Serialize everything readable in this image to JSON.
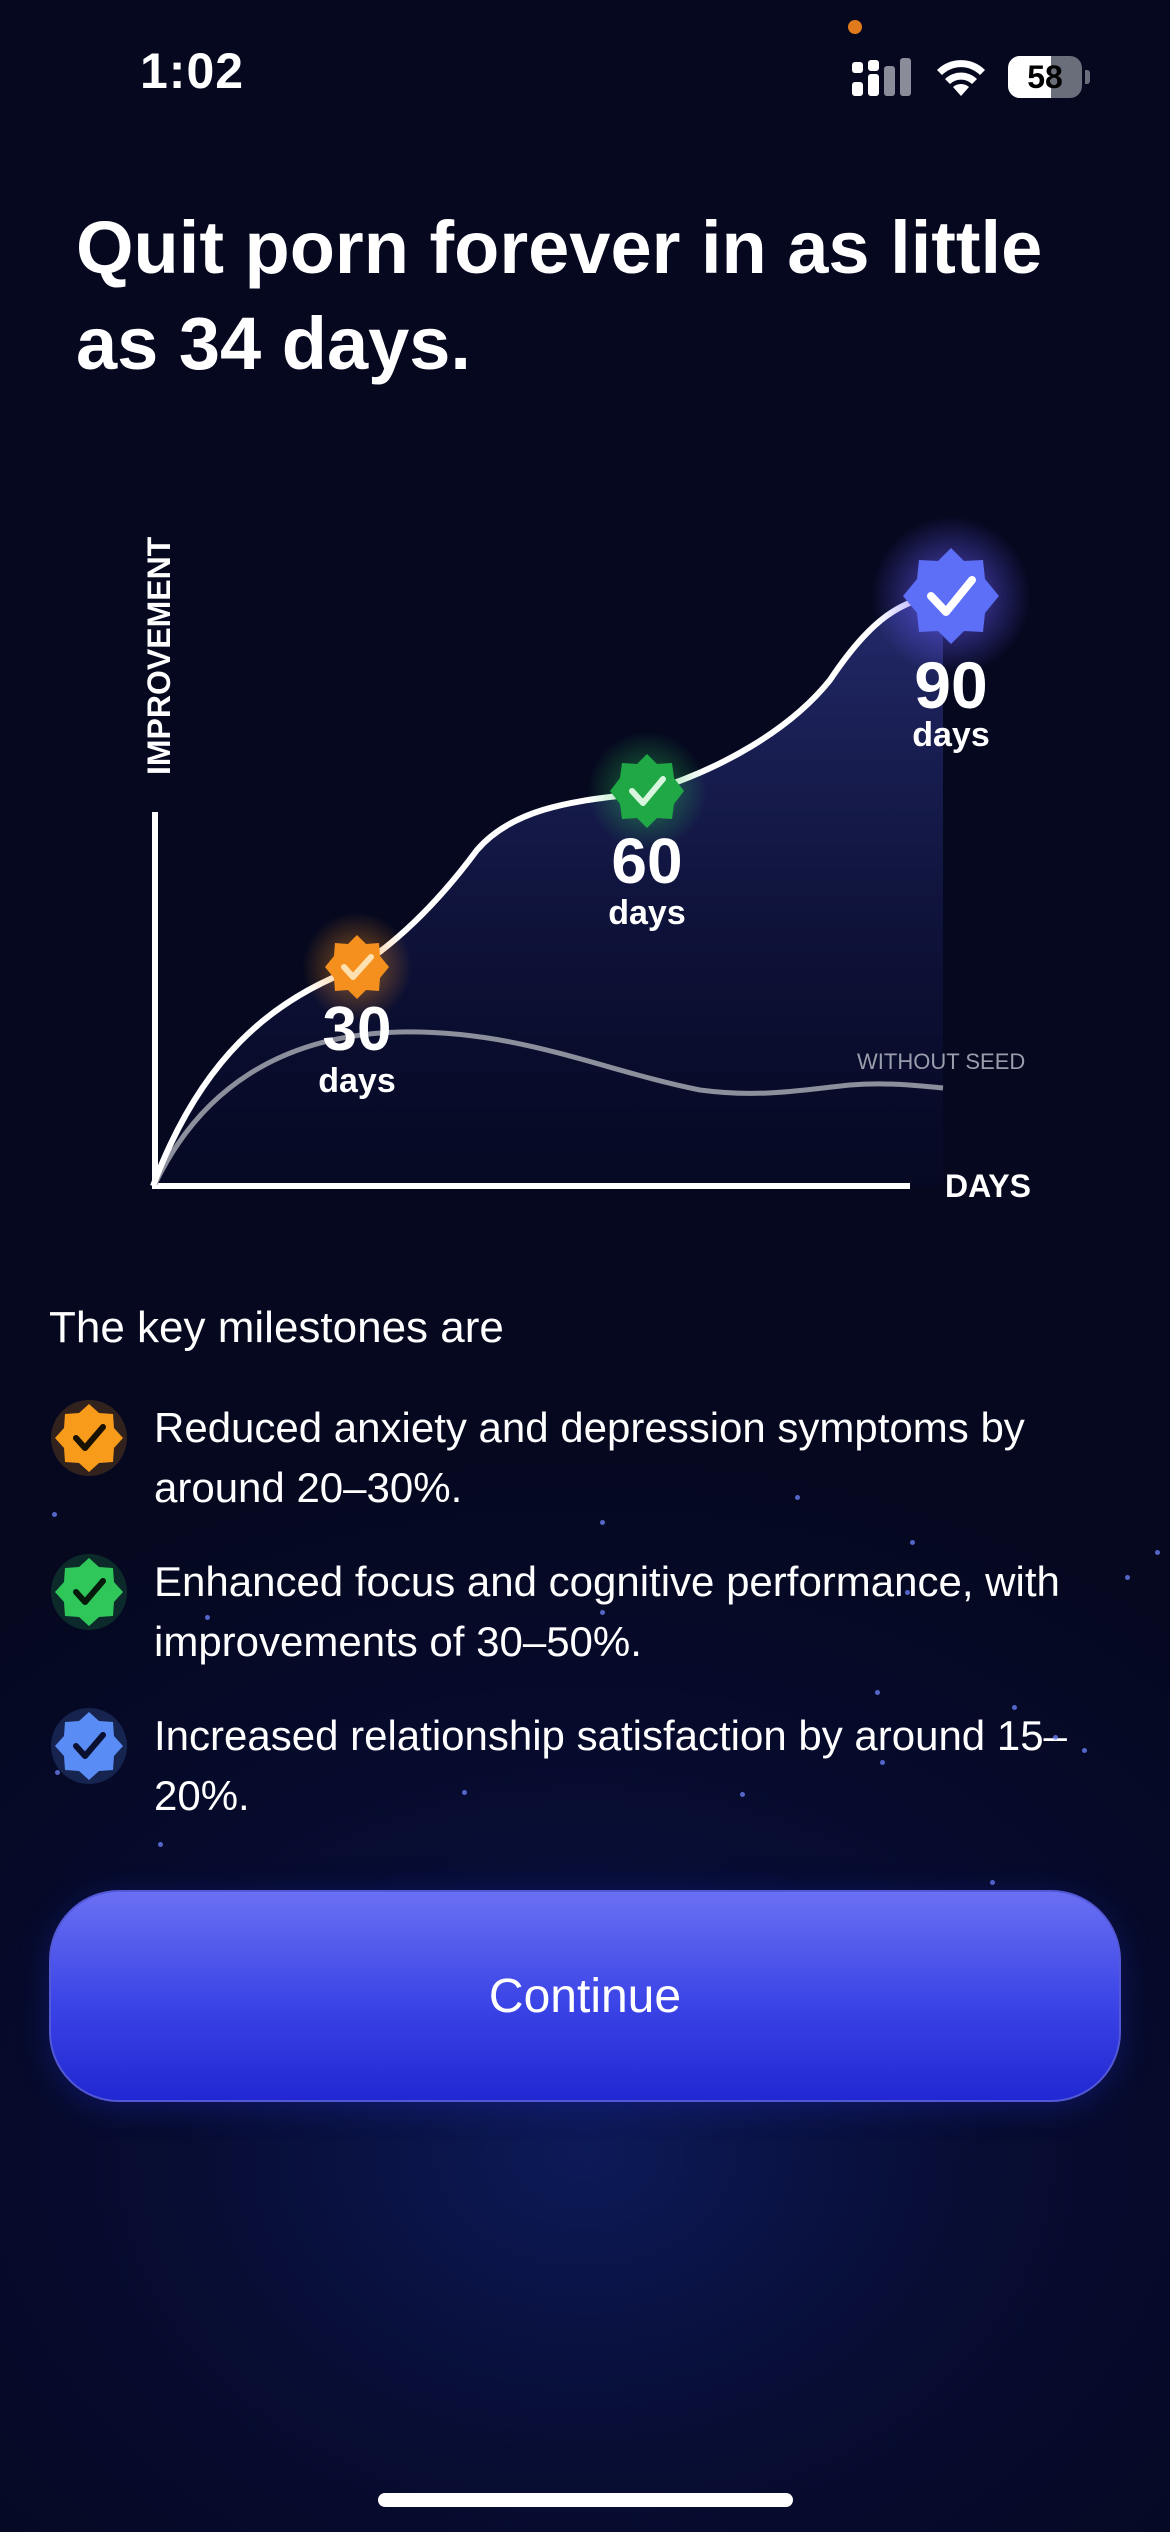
{
  "status_bar": {
    "time": "1:02",
    "battery_percent": "58",
    "battery_level": 0.58,
    "icons": [
      "signal-icon",
      "wifi-icon",
      "battery-icon"
    ]
  },
  "headline": "Quit porn forever in as little as 34 days.",
  "chart_data": {
    "type": "line",
    "ylabel": "IMPROVEMENT",
    "xlabel": "DAYS",
    "series": [
      {
        "name": "",
        "role": "with-seed",
        "color": "#ffffff"
      },
      {
        "name": "WITHOUT SEED",
        "color": "#8a8d99"
      }
    ],
    "milestones": [
      {
        "number": "30",
        "unit": "days",
        "color": "#f58a1c"
      },
      {
        "number": "60",
        "unit": "days",
        "color": "#28b04a"
      },
      {
        "number": "90",
        "unit": "days",
        "color": "#5b6cf5"
      }
    ]
  },
  "milestones": {
    "heading": "The key milestones are",
    "items": [
      {
        "text": "Reduced anxiety and depression symptoms by around 20–30%.",
        "color": "#f89a1a",
        "icon": "check-badge-icon"
      },
      {
        "text": "Enhanced focus and cognitive performance, with improvements of 30–50%.",
        "color": "#2fc65a",
        "icon": "check-badge-icon"
      },
      {
        "text": "Increased relationship satisfaction by around 15–20%.",
        "color": "#5a8cf6",
        "icon": "check-badge-icon"
      }
    ]
  },
  "continue_label": "Continue",
  "colors": {
    "accent": "#4a52ee",
    "background": "#05081f"
  }
}
